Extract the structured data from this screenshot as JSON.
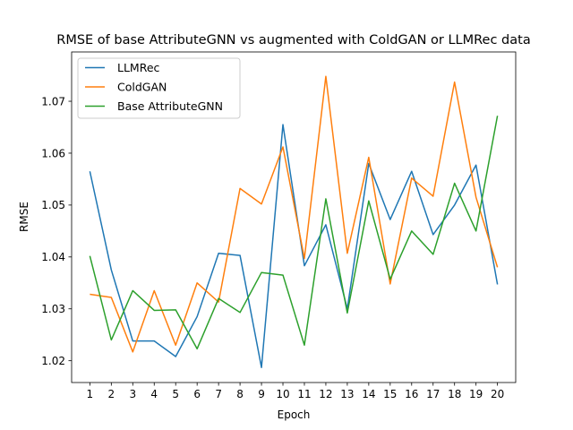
{
  "chart_data": {
    "type": "line",
    "title": "RMSE of base AttributeGNN vs augmented with ColdGAN or LLMRec data",
    "xlabel": "Epoch",
    "ylabel": "RMSE",
    "x": [
      1,
      2,
      3,
      4,
      5,
      6,
      7,
      8,
      9,
      10,
      11,
      12,
      13,
      14,
      15,
      16,
      17,
      18,
      19,
      20
    ],
    "xlim": [
      0.15,
      20.85
    ],
    "ylim": [
      1.0158,
      1.0795
    ],
    "yticks": [
      1.02,
      1.03,
      1.04,
      1.05,
      1.06,
      1.07
    ],
    "ytick_labels": [
      "1.02",
      "1.03",
      "1.04",
      "1.05",
      "1.06",
      "1.07"
    ],
    "xtick_labels": [
      "1",
      "2",
      "3",
      "4",
      "5",
      "6",
      "7",
      "8",
      "9",
      "10",
      "11",
      "12",
      "13",
      "14",
      "15",
      "16",
      "17",
      "18",
      "19",
      "20"
    ],
    "grid": false,
    "legend_position": "top-left",
    "series": [
      {
        "name": "LLMRec",
        "color": "#1f77b4",
        "values": [
          1.0565,
          1.0375,
          1.0238,
          1.0238,
          1.0208,
          1.0285,
          1.0407,
          1.0403,
          1.0187,
          1.0655,
          1.0383,
          1.0462,
          1.03,
          1.058,
          1.0472,
          1.0565,
          1.0443,
          1.05,
          1.0577,
          1.0347
        ]
      },
      {
        "name": "ColdGAN",
        "color": "#ff7f0e",
        "values": [
          1.0328,
          1.0322,
          1.0217,
          1.0335,
          1.023,
          1.035,
          1.0313,
          1.0532,
          1.0502,
          1.0612,
          1.0397,
          1.0748,
          1.0407,
          1.0592,
          1.0348,
          1.0552,
          1.0517,
          1.0737,
          1.0515,
          1.038
        ]
      },
      {
        "name": "Base AttributeGNN",
        "color": "#2ca02c",
        "values": [
          1.0402,
          1.024,
          1.0335,
          1.0297,
          1.0298,
          1.0223,
          1.032,
          1.0293,
          1.037,
          1.0365,
          1.023,
          1.0512,
          1.0292,
          1.0508,
          1.0357,
          1.045,
          1.0405,
          1.0542,
          1.045,
          1.0672
        ]
      }
    ]
  }
}
